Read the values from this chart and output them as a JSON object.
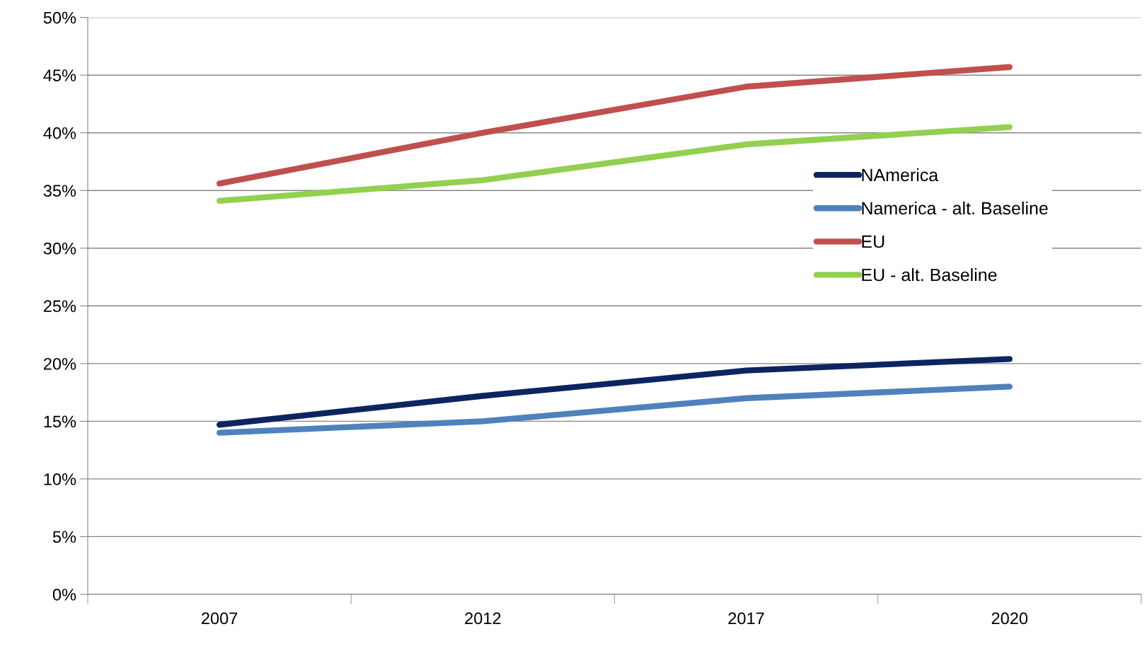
{
  "chart_data": {
    "type": "line",
    "categories": [
      "2007",
      "2012",
      "2017",
      "2020"
    ],
    "series": [
      {
        "name": "NAmerica",
        "color": "#0d2461",
        "values": [
          14.7,
          17.2,
          19.4,
          20.4
        ]
      },
      {
        "name": "Namerica - alt. Baseline",
        "color": "#4f81bd",
        "values": [
          14.0,
          15.0,
          17.0,
          18.0
        ]
      },
      {
        "name": "EU",
        "color": "#c0504d",
        "values": [
          35.6,
          40.0,
          44.0,
          45.7
        ]
      },
      {
        "name": "EU - alt. Baseline",
        "color": "#92d050",
        "values": [
          34.1,
          35.9,
          39.0,
          40.5
        ]
      }
    ],
    "ylim": [
      0,
      50
    ],
    "yticks": [
      {
        "value": 0,
        "label": "0%"
      },
      {
        "value": 5,
        "label": "5%"
      },
      {
        "value": 10,
        "label": "10%"
      },
      {
        "value": 15,
        "label": "15%"
      },
      {
        "value": 20,
        "label": "20%"
      },
      {
        "value": 25,
        "label": "25%"
      },
      {
        "value": 30,
        "label": "30%"
      },
      {
        "value": 35,
        "label": "35%"
      },
      {
        "value": 40,
        "label": "40%"
      },
      {
        "value": 45,
        "label": "45%"
      },
      {
        "value": 50,
        "label": "50%"
      }
    ],
    "grid": "y",
    "legend": "right",
    "marker": "none",
    "line_style": "solid"
  }
}
